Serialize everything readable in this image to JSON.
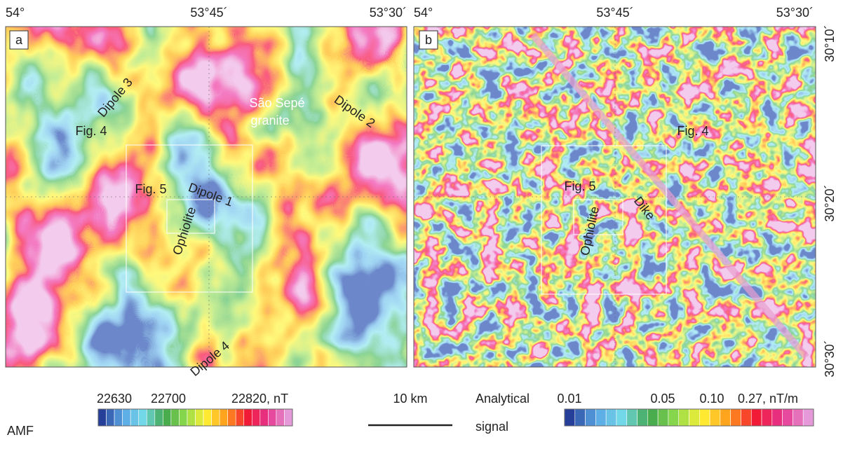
{
  "panels": [
    {
      "label": "a",
      "lon_labels": [
        "54°",
        "53°45´",
        "53°30´"
      ],
      "annotations": [
        "Dipole 3",
        "Fig. 4",
        "São Sepé",
        "granite",
        "Dipole 2",
        "Fig. 5",
        "Dipole 1",
        "Ophiolite",
        "Dipole 4"
      ]
    },
    {
      "label": "b",
      "lon_labels": [
        "54°",
        "53°45´",
        "53°30´"
      ],
      "annotations": [
        "Fig. 4",
        "Fig. 5",
        "Dike",
        "Ophiolite"
      ]
    }
  ],
  "latitude_labels": [
    "30°10´",
    "30°20´",
    "30°30´"
  ],
  "legend_amf": {
    "title": "AMF",
    "ticks": [
      "22630",
      "22700",
      "22820, nT"
    ]
  },
  "scale_bar": "10 km",
  "legend_as": {
    "title_lines": [
      "Analytical",
      "signal"
    ],
    "ticks": [
      "0.01",
      "0.05",
      "0.10",
      "0.27, nT/m"
    ]
  }
}
